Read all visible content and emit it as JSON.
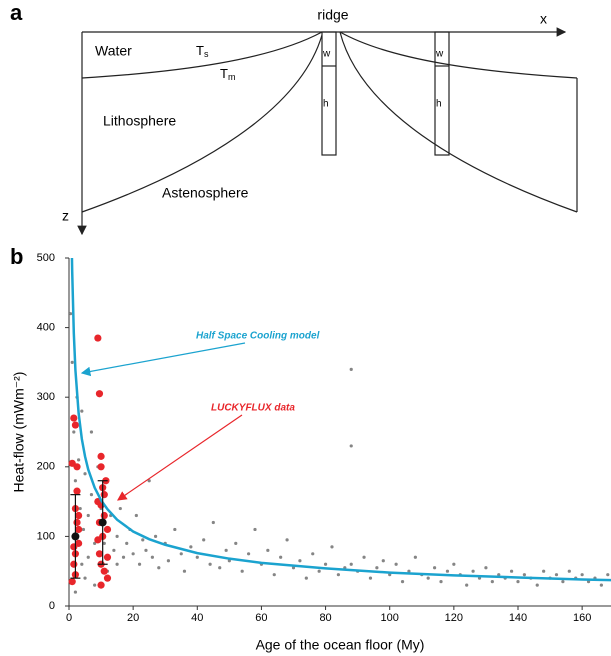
{
  "diagram": {
    "panel": "a",
    "ridge": "ridge",
    "x_axis": "x",
    "z_axis": "z",
    "water": "Water",
    "ts_main": "T",
    "ts_sub": "s",
    "tm_main": "T",
    "tm_sub": "m",
    "lithosphere": "Lithosphere",
    "astenosphere": "Astenosphere",
    "left_w": "w",
    "left_h": "h",
    "right_w": "w",
    "right_h": "h"
  },
  "chart_data": {
    "type": "scatter",
    "panel": "b",
    "xlabel": "Age of the ocean floor (My)",
    "ylabel": "Heat-flow (mWm⁻²)",
    "xlim": [
      0,
      169
    ],
    "ylim": [
      0,
      500
    ],
    "xticks": [
      0,
      20,
      40,
      60,
      80,
      100,
      120,
      140,
      160
    ],
    "yticks": [
      0,
      100,
      200,
      300,
      400,
      500
    ],
    "series": [
      {
        "color": "#858585",
        "x": [
          0.5,
          1,
          1,
          1.5,
          2,
          2,
          2.5,
          3,
          3,
          3.5,
          4,
          4,
          4.5,
          5,
          5,
          6,
          6,
          7,
          7,
          8,
          8,
          9,
          9,
          10,
          10,
          11,
          12,
          12,
          13,
          14,
          15,
          15,
          16,
          17,
          18,
          19,
          20,
          21,
          22,
          23,
          24,
          25,
          26,
          27,
          28,
          30,
          31,
          33,
          35,
          36,
          38,
          40,
          42,
          44,
          45,
          47,
          49,
          50,
          52,
          54,
          56,
          58,
          60,
          62,
          64,
          66,
          68,
          70,
          72,
          74,
          76,
          78,
          80,
          82,
          84,
          86,
          88,
          88,
          88,
          90,
          92,
          94,
          96,
          98,
          100,
          102,
          104,
          106,
          108,
          110,
          112,
          114,
          116,
          118,
          120,
          122,
          124,
          126,
          128,
          130,
          132,
          134,
          136,
          138,
          140,
          142,
          144,
          146,
          148,
          150,
          152,
          154,
          156,
          158,
          160,
          162,
          164,
          166,
          168
        ],
        "values": [
          420,
          350,
          60,
          250,
          180,
          20,
          300,
          90,
          210,
          140,
          60,
          280,
          110,
          40,
          190,
          130,
          70,
          250,
          160,
          90,
          30,
          120,
          200,
          60,
          140,
          90,
          110,
          50,
          130,
          80,
          100,
          60,
          140,
          70,
          90,
          110,
          75,
          130,
          60,
          95,
          80,
          180,
          70,
          100,
          55,
          90,
          65,
          110,
          75,
          50,
          85,
          70,
          95,
          60,
          120,
          55,
          80,
          65,
          90,
          50,
          75,
          110,
          60,
          80,
          45,
          70,
          95,
          55,
          65,
          40,
          75,
          50,
          60,
          85,
          45,
          55,
          340,
          230,
          60,
          50,
          70,
          40,
          55,
          65,
          45,
          60,
          35,
          50,
          70,
          45,
          40,
          55,
          35,
          50,
          60,
          45,
          30,
          50,
          40,
          55,
          35,
          45,
          40,
          50,
          35,
          45,
          40,
          30,
          50,
          40,
          45,
          35,
          50,
          40,
          45,
          35,
          40,
          30,
          45
        ]
      },
      {
        "name": "LUCKYFLUX data",
        "color": "#e8262b",
        "x": [
          1,
          1.5,
          2,
          2,
          2.5,
          3,
          1.5,
          2,
          3,
          2.5,
          1,
          2,
          3,
          2.5,
          1.5,
          9,
          9.5,
          10,
          10,
          10.5,
          11,
          11,
          12,
          9,
          9.5,
          10,
          11,
          12,
          10,
          9.5,
          10.5,
          11.5,
          9,
          10,
          12
        ],
        "values": [
          205,
          270,
          260,
          140,
          120,
          90,
          60,
          45,
          110,
          165,
          35,
          75,
          130,
          200,
          85,
          385,
          305,
          215,
          200,
          170,
          160,
          130,
          110,
          95,
          75,
          60,
          50,
          40,
          145,
          120,
          100,
          180,
          150,
          30,
          70
        ]
      },
      {
        "name": "Half Space Cooling model",
        "type": "line",
        "color": "#1ba3cf",
        "x": [
          0.92,
          1,
          1.5,
          2,
          3,
          4,
          5,
          6,
          8,
          10,
          12,
          15,
          20,
          25,
          30,
          40,
          50,
          60,
          80,
          100,
          120,
          140,
          160,
          170
        ],
        "values": [
          500,
          480,
          392,
          339,
          277,
          240,
          215,
          196,
          170,
          152,
          139,
          124,
          107,
          96,
          88,
          76,
          68,
          62,
          54,
          48,
          44,
          41,
          38,
          37
        ]
      }
    ],
    "means": {
      "color": "#111111",
      "x": [
        2,
        10.5
      ],
      "values": [
        100,
        120
      ],
      "errors": [
        60,
        60
      ]
    }
  }
}
